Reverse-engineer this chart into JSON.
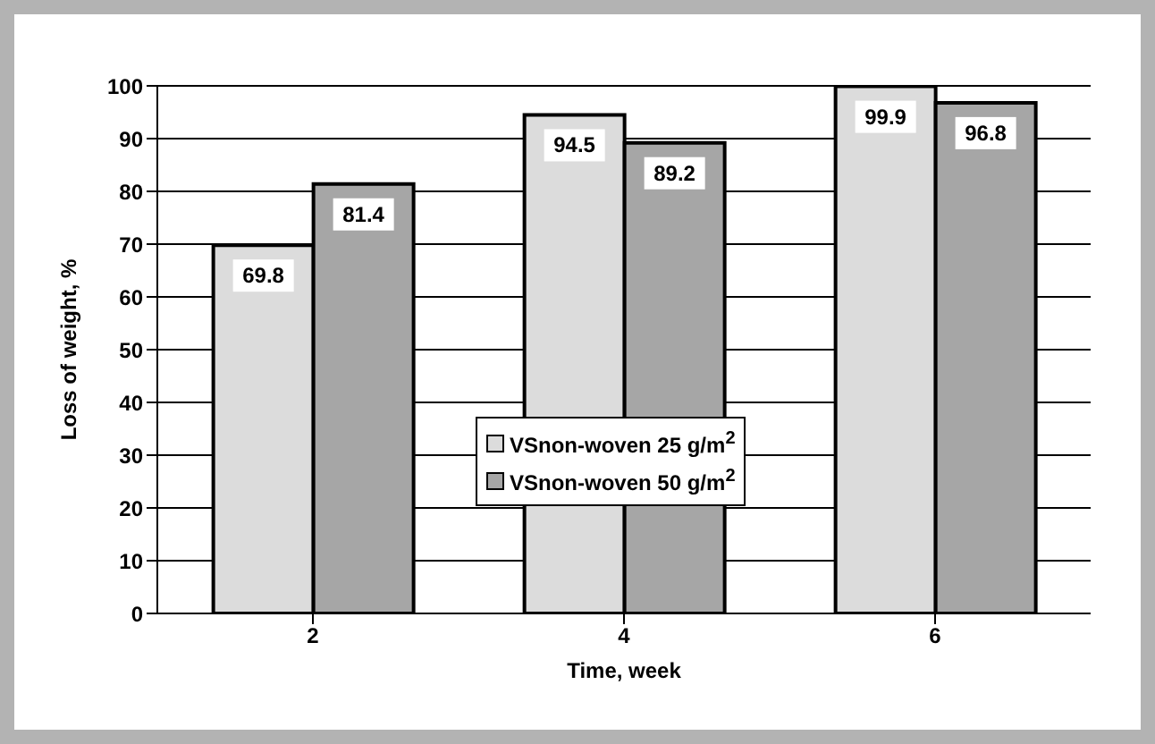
{
  "chart_data": {
    "type": "bar",
    "xlabel": "Time, week",
    "ylabel": "Loss of weight, %",
    "categories": [
      "2",
      "4",
      "6"
    ],
    "series": [
      {
        "name": "VSnon-woven 25 g/m$^{2}$",
        "color": "#dcdcdc",
        "values": [
          69.8,
          94.5,
          99.9
        ]
      },
      {
        "name": "VSnon-woven 50 g/m$^{2}$",
        "color": "#a6a6a6",
        "values": [
          81.4,
          89.2,
          96.8
        ]
      }
    ],
    "ylim": [
      0,
      100
    ],
    "yticks": [
      0,
      10,
      20,
      30,
      40,
      50,
      60,
      70,
      80,
      90,
      100
    ],
    "grid": "y",
    "legend": "center",
    "data_labels": true
  }
}
